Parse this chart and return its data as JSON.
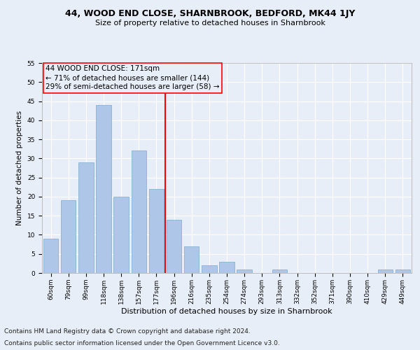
{
  "title": "44, WOOD END CLOSE, SHARNBROOK, BEDFORD, MK44 1JY",
  "subtitle": "Size of property relative to detached houses in Sharnbrook",
  "xlabel": "Distribution of detached houses by size in Sharnbrook",
  "ylabel": "Number of detached properties",
  "categories": [
    "60sqm",
    "79sqm",
    "99sqm",
    "118sqm",
    "138sqm",
    "157sqm",
    "177sqm",
    "196sqm",
    "216sqm",
    "235sqm",
    "254sqm",
    "274sqm",
    "293sqm",
    "313sqm",
    "332sqm",
    "352sqm",
    "371sqm",
    "390sqm",
    "410sqm",
    "429sqm",
    "449sqm"
  ],
  "values": [
    9,
    19,
    29,
    44,
    20,
    32,
    22,
    14,
    7,
    2,
    3,
    1,
    0,
    1,
    0,
    0,
    0,
    0,
    0,
    1,
    1
  ],
  "bar_color": "#aec6e8",
  "bar_edgecolor": "#7aaad0",
  "vline_x": 6.5,
  "vline_color": "red",
  "annotation_title": "44 WOOD END CLOSE: 171sqm",
  "annotation_line1": "← 71% of detached houses are smaller (144)",
  "annotation_line2": "29% of semi-detached houses are larger (58) →",
  "annotation_box_edgecolor": "red",
  "ylim": [
    0,
    55
  ],
  "yticks": [
    0,
    5,
    10,
    15,
    20,
    25,
    30,
    35,
    40,
    45,
    50,
    55
  ],
  "footnote1": "Contains HM Land Registry data © Crown copyright and database right 2024.",
  "footnote2": "Contains public sector information licensed under the Open Government Licence v3.0.",
  "background_color": "#e8eef7",
  "grid_color": "#ffffff",
  "title_fontsize": 9,
  "subtitle_fontsize": 8,
  "xlabel_fontsize": 8,
  "ylabel_fontsize": 7.5,
  "tick_fontsize": 6.5,
  "annotation_fontsize": 7.5,
  "footnote_fontsize": 6.5
}
